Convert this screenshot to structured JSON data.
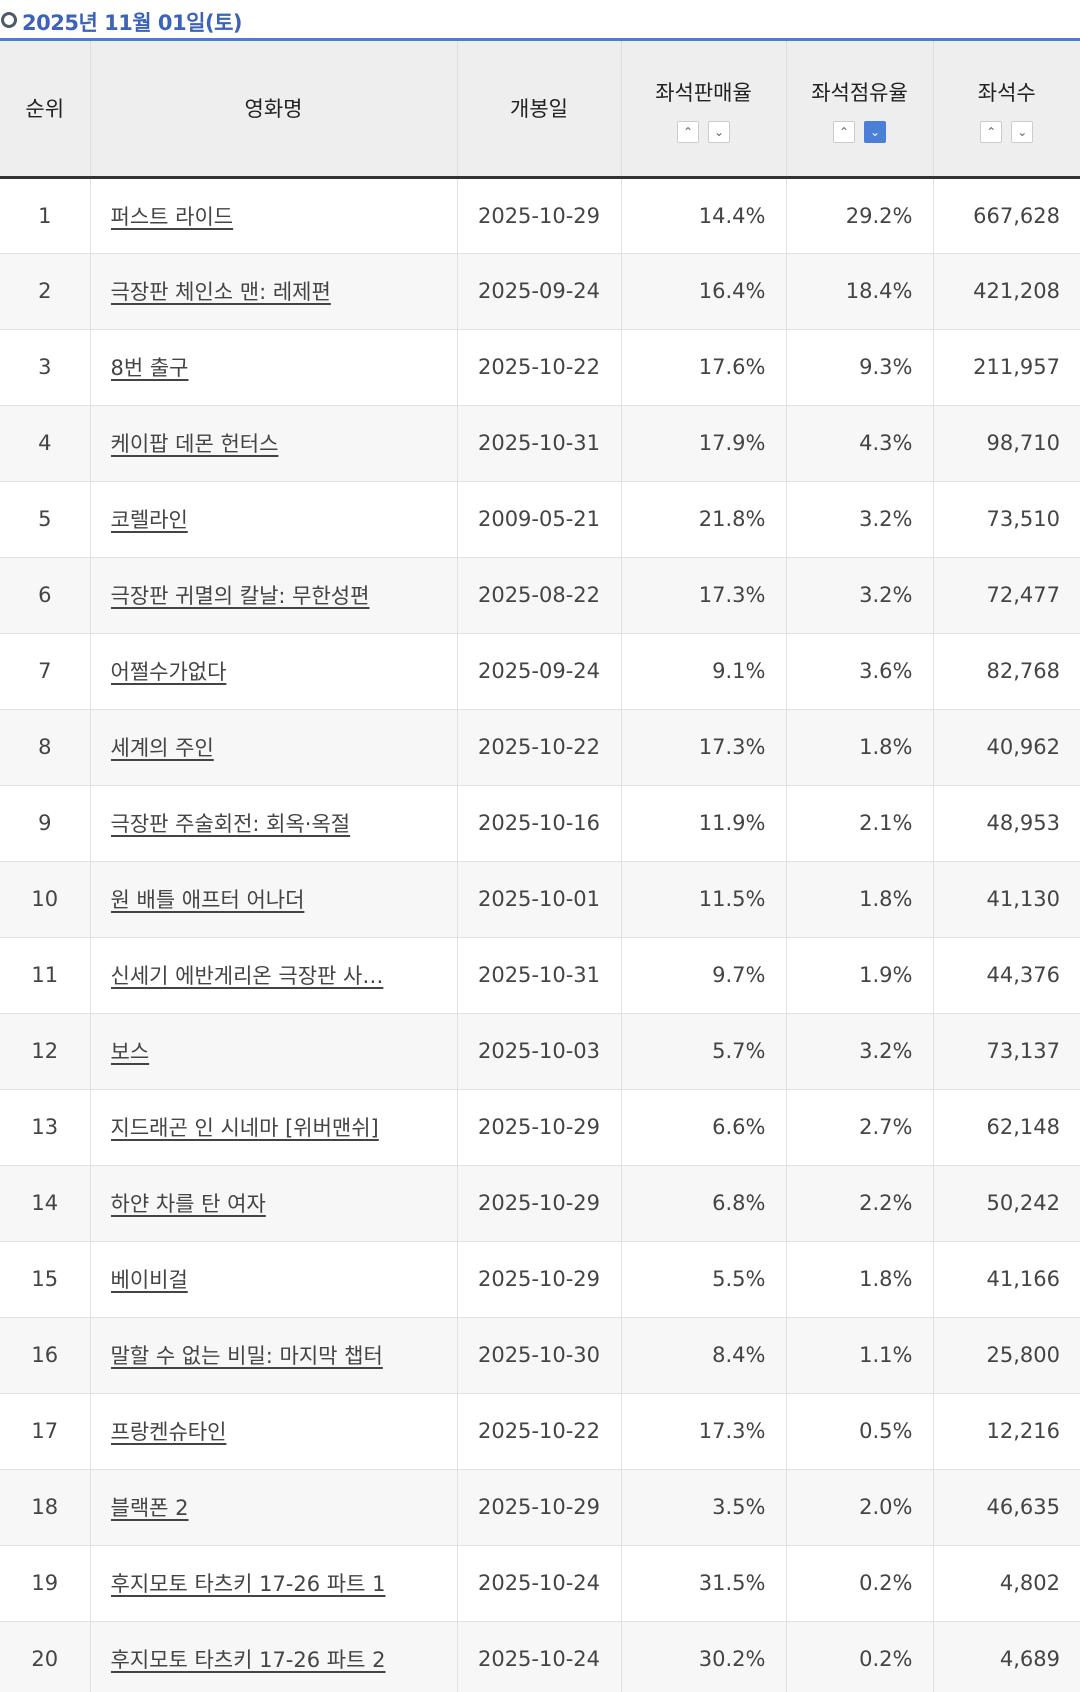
{
  "date_label": "2025년 11월 01일(토)",
  "headers": {
    "rank": "순위",
    "title": "영화명",
    "release": "개봉일",
    "sales_ratio": "좌석판매율",
    "occupancy": "좌석점유율",
    "seats": "좌석수"
  },
  "sort": {
    "up_icon": "chevron-up-icon",
    "down_icon": "chevron-down-icon",
    "up_glyph": "⌃",
    "down_glyph": "⌄",
    "active": "occupancy-desc",
    "active_color": "#4a7fd8"
  },
  "rows": [
    {
      "rank": "1",
      "title": "퍼스트 라이드",
      "release": "2025-10-29",
      "sales_ratio": "14.4%",
      "occupancy": "29.2%",
      "seats": "667,628"
    },
    {
      "rank": "2",
      "title": "극장판 체인소 맨: 레제편",
      "release": "2025-09-24",
      "sales_ratio": "16.4%",
      "occupancy": "18.4%",
      "seats": "421,208"
    },
    {
      "rank": "3",
      "title": "8번 출구",
      "release": "2025-10-22",
      "sales_ratio": "17.6%",
      "occupancy": "9.3%",
      "seats": "211,957"
    },
    {
      "rank": "4",
      "title": "케이팝 데몬 헌터스",
      "release": "2025-10-31",
      "sales_ratio": "17.9%",
      "occupancy": "4.3%",
      "seats": "98,710"
    },
    {
      "rank": "5",
      "title": "코렐라인",
      "release": "2009-05-21",
      "sales_ratio": "21.8%",
      "occupancy": "3.2%",
      "seats": "73,510"
    },
    {
      "rank": "6",
      "title": "극장판 귀멸의 칼날: 무한성편",
      "release": "2025-08-22",
      "sales_ratio": "17.3%",
      "occupancy": "3.2%",
      "seats": "72,477"
    },
    {
      "rank": "7",
      "title": "어쩔수가없다",
      "release": "2025-09-24",
      "sales_ratio": "9.1%",
      "occupancy": "3.6%",
      "seats": "82,768"
    },
    {
      "rank": "8",
      "title": "세계의 주인",
      "release": "2025-10-22",
      "sales_ratio": "17.3%",
      "occupancy": "1.8%",
      "seats": "40,962"
    },
    {
      "rank": "9",
      "title": "극장판 주술회전: 회옥·옥절",
      "release": "2025-10-16",
      "sales_ratio": "11.9%",
      "occupancy": "2.1%",
      "seats": "48,953"
    },
    {
      "rank": "10",
      "title": "원 배틀 애프터 어나더",
      "release": "2025-10-01",
      "sales_ratio": "11.5%",
      "occupancy": "1.8%",
      "seats": "41,130"
    },
    {
      "rank": "11",
      "title": "신세기 에반게리온 극장판 사…",
      "release": "2025-10-31",
      "sales_ratio": "9.7%",
      "occupancy": "1.9%",
      "seats": "44,376"
    },
    {
      "rank": "12",
      "title": "보스",
      "release": "2025-10-03",
      "sales_ratio": "5.7%",
      "occupancy": "3.2%",
      "seats": "73,137"
    },
    {
      "rank": "13",
      "title": "지드래곤 인 시네마 [위버맨쉬]",
      "release": "2025-10-29",
      "sales_ratio": "6.6%",
      "occupancy": "2.7%",
      "seats": "62,148"
    },
    {
      "rank": "14",
      "title": "하얀 차를 탄 여자",
      "release": "2025-10-29",
      "sales_ratio": "6.8%",
      "occupancy": "2.2%",
      "seats": "50,242"
    },
    {
      "rank": "15",
      "title": "베이비걸",
      "release": "2025-10-29",
      "sales_ratio": "5.5%",
      "occupancy": "1.8%",
      "seats": "41,166"
    },
    {
      "rank": "16",
      "title": "말할 수 없는 비밀: 마지막 챕터",
      "release": "2025-10-30",
      "sales_ratio": "8.4%",
      "occupancy": "1.1%",
      "seats": "25,800"
    },
    {
      "rank": "17",
      "title": "프랑켄슈타인",
      "release": "2025-10-22",
      "sales_ratio": "17.3%",
      "occupancy": "0.5%",
      "seats": "12,216"
    },
    {
      "rank": "18",
      "title": "블랙폰 2",
      "release": "2025-10-29",
      "sales_ratio": "3.5%",
      "occupancy": "2.0%",
      "seats": "46,635"
    },
    {
      "rank": "19",
      "title": "후지모토 타츠키 17-26 파트 1",
      "release": "2025-10-24",
      "sales_ratio": "31.5%",
      "occupancy": "0.2%",
      "seats": "4,802"
    },
    {
      "rank": "20",
      "title": "후지모토 타츠키 17-26 파트 2",
      "release": "2025-10-24",
      "sales_ratio": "30.2%",
      "occupancy": "0.2%",
      "seats": "4,689"
    }
  ]
}
